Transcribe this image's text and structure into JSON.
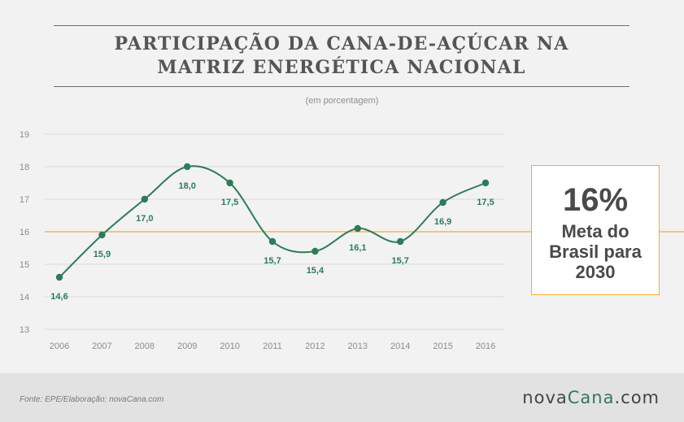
{
  "header": {
    "title_line1": "PARTICIPAÇÃO DA CANA-DE-AÇÚCAR NA",
    "title_line2": "MATRIZ ENERGÉTICA NACIONAL",
    "subtitle": "(em porcentagem)"
  },
  "goal_box": {
    "value": "16%",
    "text": "Meta do Brasil para 2030"
  },
  "footer": {
    "source": "Fonte: EPE/Elaboração: novaCana.com",
    "brand_part1": "nova",
    "brand_part2": "Cana",
    "brand_part3": ".com"
  },
  "colors": {
    "line": "#2e7a59",
    "target": "#f0ac3a",
    "grid": "#d9d9d9",
    "text": "#555555"
  },
  "chart_data": {
    "type": "line",
    "title": "PARTICIPAÇÃO DA CANA-DE-AÇÚCAR NA MATRIZ ENERGÉTICA NACIONAL",
    "subtitle": "(em porcentagem)",
    "x": [
      2006,
      2007,
      2008,
      2009,
      2010,
      2011,
      2012,
      2013,
      2014,
      2015,
      2016
    ],
    "x_tick_labels": [
      "2006",
      "2007",
      "2008",
      "2009",
      "2010",
      "2011",
      "2012",
      "2013",
      "2014",
      "2015",
      "2016"
    ],
    "values": [
      14.6,
      15.9,
      17.0,
      18.0,
      17.5,
      15.7,
      15.4,
      16.1,
      15.7,
      16.9,
      17.5
    ],
    "data_labels": [
      "14,6",
      "15,9",
      "17,0",
      "18,0",
      "17,5",
      "15,7",
      "15,4",
      "16,1",
      "15,7",
      "16,9",
      "17,5"
    ],
    "ylim": [
      13,
      19
    ],
    "y_ticks": [
      13,
      14,
      15,
      16,
      17,
      18,
      19
    ],
    "y_tick_labels": [
      "13",
      "14",
      "15",
      "16",
      "17",
      "18",
      "19"
    ],
    "target_line": 16,
    "grid": true,
    "legend": false,
    "smooth": true
  }
}
